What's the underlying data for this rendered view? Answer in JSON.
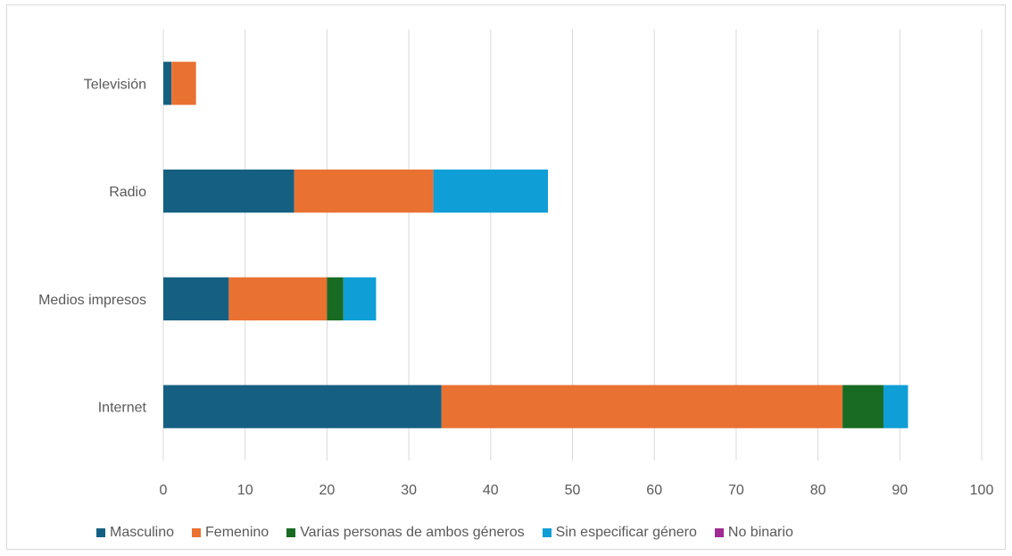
{
  "chart_data": {
    "type": "bar",
    "orientation": "horizontal",
    "stacked": true,
    "categories": [
      "Internet",
      "Medios impresos",
      "Radio",
      "Televisión"
    ],
    "series": [
      {
        "name": "Masculino",
        "color": "#156082",
        "values": [
          34,
          8,
          16,
          1
        ]
      },
      {
        "name": "Femenino",
        "color": "#E97132",
        "values": [
          49,
          12,
          17,
          3
        ]
      },
      {
        "name": "Varias personas de ambos géneros",
        "color": "#196B24",
        "values": [
          5,
          2,
          0,
          0
        ]
      },
      {
        "name": "Sin especificar género",
        "color": "#0F9ED5",
        "values": [
          3,
          4,
          14,
          0
        ]
      },
      {
        "name": "No binario",
        "color": "#A02B93",
        "values": [
          0,
          0,
          0,
          0
        ]
      }
    ],
    "x_ticks": [
      0,
      10,
      20,
      30,
      40,
      50,
      60,
      70,
      80,
      90,
      100
    ],
    "xlim": [
      0,
      100
    ],
    "title": "",
    "xlabel": "",
    "ylabel": "",
    "grid": "vertical",
    "legend_position": "bottom"
  }
}
